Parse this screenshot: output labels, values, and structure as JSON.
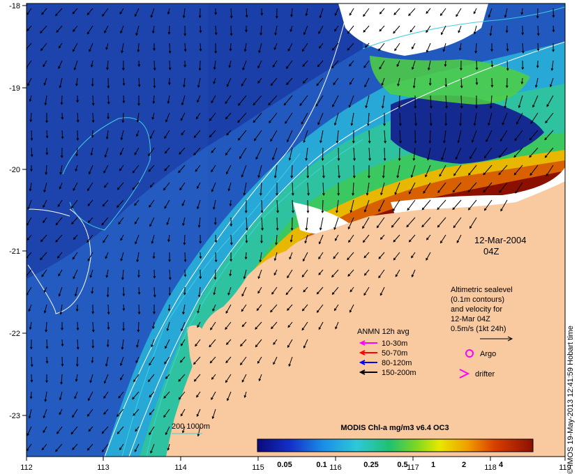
{
  "map": {
    "date": "12-Mar-2004",
    "time": "04Z",
    "lon_labels": [
      "112",
      "113",
      "114",
      "115",
      "116",
      "117",
      "118",
      "119"
    ],
    "lat_labels": [
      "-18",
      "-19",
      "-20",
      "-21",
      "-22",
      "-23"
    ],
    "lon_range": [
      112,
      119
    ],
    "lat_range": [
      -23.5,
      -18
    ]
  },
  "altimetry_note": {
    "line1": "Altimetric sealevel",
    "line2": "(0.1m contours)",
    "line3": "and velocity for",
    "line4": "12-Mar 04Z",
    "line5": "0.5m/s (1kt 24h)"
  },
  "anmn_legend": {
    "title": "ANMN 12h avg",
    "items": [
      {
        "label": "10-30m",
        "color": "#ff00ff"
      },
      {
        "label": "50-70m",
        "color": "#ff0000"
      },
      {
        "label": "80-120m",
        "color": "#0000ff"
      },
      {
        "label": "150-200m",
        "color": "#000000"
      }
    ]
  },
  "argo_label": "Argo",
  "drifter_label": "drifter",
  "isobath_label": "200  1000m",
  "colorbar": {
    "title": "MODIS Chl-a mg/m3 v6.4 OC3",
    "ticks": [
      "0.05",
      "0.1",
      "0.25",
      "0.5",
      "1",
      "2",
      "4"
    ]
  },
  "credit": "© IMOS 19-May-2013 12:41:59 Hobart time",
  "colors": {
    "land": "#f9c9a0",
    "ocean_deep": "#1a3fa8",
    "chl_high": "#8b1000",
    "accent_magenta": "#ff00ff"
  }
}
